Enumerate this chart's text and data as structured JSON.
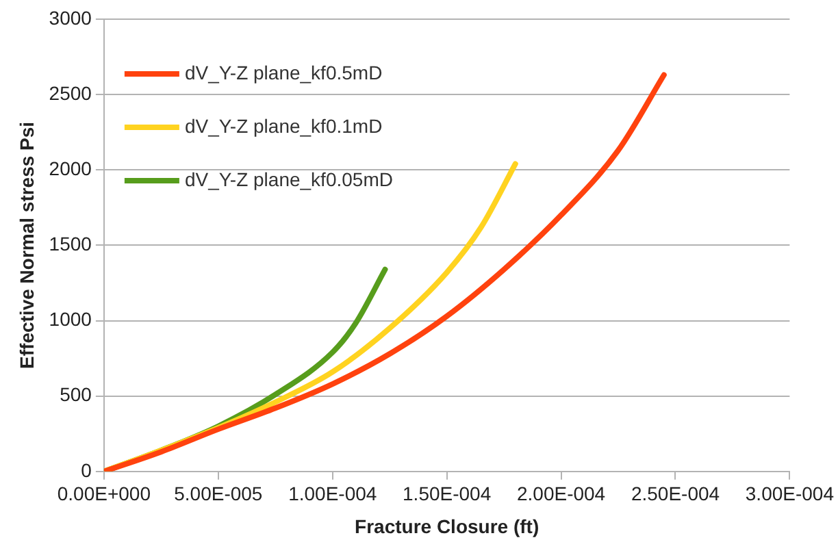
{
  "chart_data": {
    "type": "line",
    "xlabel": "Fracture Closure (ft)",
    "ylabel": "Effective Normal stress Psi",
    "xlim": [
      0,
      0.0003
    ],
    "xticks": [
      {
        "value": 0,
        "label": "0.00E+000"
      },
      {
        "value": 5e-05,
        "label": "5.00E-005"
      },
      {
        "value": 0.0001,
        "label": "1.00E-004"
      },
      {
        "value": 0.00015,
        "label": "1.50E-004"
      },
      {
        "value": 0.0002,
        "label": "2.00E-004"
      },
      {
        "value": 0.00025,
        "label": "2.50E-004"
      },
      {
        "value": 0.0003,
        "label": "3.00E-004"
      }
    ],
    "ylim": [
      0,
      3000
    ],
    "yticks": [
      0,
      500,
      1000,
      1500,
      2000,
      2500,
      3000
    ],
    "grid": "y",
    "legend": "top left",
    "marker": "none",
    "line_style": "solid",
    "series": [
      {
        "name": "dV_Y-Z plane_kf0.5mD",
        "color": "#ff420e",
        "x": [
          0,
          2.5e-05,
          5e-05,
          7.5e-05,
          0.0001,
          0.000125,
          0.00015,
          0.000175,
          0.0002,
          0.000225,
          0.000245
        ],
        "values": [
          0,
          130,
          280,
          420,
          580,
          780,
          1030,
          1340,
          1700,
          2130,
          2630
        ]
      },
      {
        "name": "dV_Y-Z plane_kf0.1mD",
        "color": "#ffd320",
        "x": [
          0,
          2.5e-05,
          5e-05,
          7.5e-05,
          0.0001,
          0.000125,
          0.00015,
          0.000165,
          0.00018
        ],
        "values": [
          0,
          140,
          290,
          460,
          660,
          950,
          1320,
          1620,
          2040
        ]
      },
      {
        "name": "dV_Y-Z plane_kf0.05mD",
        "color": "#579d1c",
        "x": [
          0,
          2.5e-05,
          5e-05,
          7.5e-05,
          0.0001,
          0.00011,
          0.000123
        ],
        "values": [
          0,
          140,
          300,
          510,
          790,
          980,
          1340
        ]
      }
    ]
  }
}
